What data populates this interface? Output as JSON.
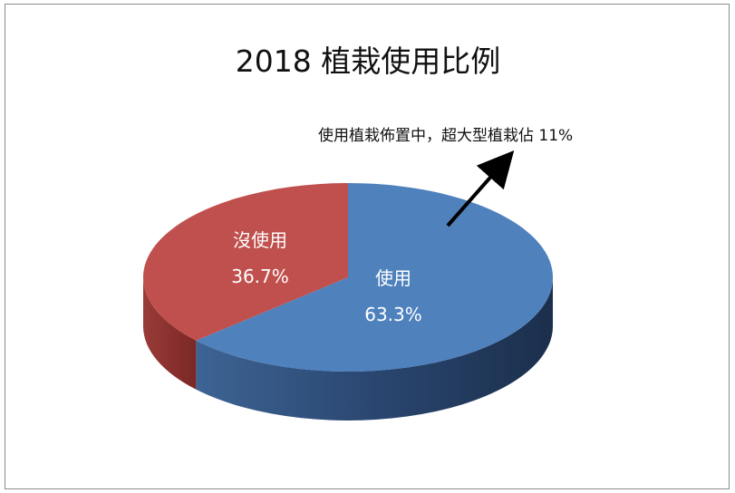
{
  "chart_data": {
    "type": "pie",
    "title": "2018 植栽使用比例",
    "slices": [
      {
        "label": "使用",
        "value": 63.3,
        "display": "63.3%",
        "color": "#4f81bd",
        "side": "#1f3a5c"
      },
      {
        "label": "沒使用",
        "value": 36.7,
        "display": "36.7%",
        "color": "#c0504d",
        "side": "#7f2a28"
      }
    ],
    "legend": "none",
    "annotation": "使用植栽佈置中，超大型植栽佔 11%"
  }
}
